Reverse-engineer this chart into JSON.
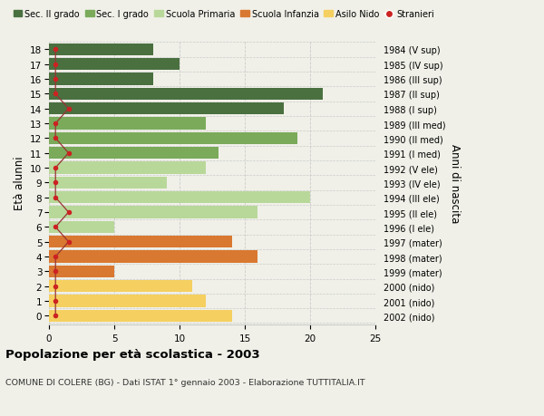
{
  "ages": [
    18,
    17,
    16,
    15,
    14,
    13,
    12,
    11,
    10,
    9,
    8,
    7,
    6,
    5,
    4,
    3,
    2,
    1,
    0
  ],
  "right_labels": [
    "1984 (V sup)",
    "1985 (IV sup)",
    "1986 (III sup)",
    "1987 (II sup)",
    "1988 (I sup)",
    "1989 (III med)",
    "1990 (II med)",
    "1991 (I med)",
    "1992 (V ele)",
    "1993 (IV ele)",
    "1994 (III ele)",
    "1995 (II ele)",
    "1996 (I ele)",
    "1997 (mater)",
    "1998 (mater)",
    "1999 (mater)",
    "2000 (nido)",
    "2001 (nido)",
    "2002 (nido)"
  ],
  "bar_values": [
    8,
    10,
    8,
    21,
    18,
    12,
    19,
    13,
    12,
    9,
    20,
    16,
    5,
    14,
    16,
    5,
    11,
    12,
    14
  ],
  "bar_colors": [
    "#4a7040",
    "#4a7040",
    "#4a7040",
    "#4a7040",
    "#4a7040",
    "#7aaa5a",
    "#7aaa5a",
    "#7aaa5a",
    "#b8d89a",
    "#b8d89a",
    "#b8d89a",
    "#b8d89a",
    "#b8d89a",
    "#d97830",
    "#d97830",
    "#d97830",
    "#f5d060",
    "#f5d060",
    "#f5d060"
  ],
  "stranieri_values": [
    0.5,
    0.5,
    0.5,
    0.5,
    1.5,
    0.5,
    0.5,
    1.5,
    0.5,
    0.5,
    0.5,
    1.5,
    0.5,
    1.5,
    0.5,
    0.5,
    0.5,
    0.5,
    0.5
  ],
  "legend_labels": [
    "Sec. II grado",
    "Sec. I grado",
    "Scuola Primaria",
    "Scuola Infanzia",
    "Asilo Nido",
    "Stranieri"
  ],
  "legend_colors": [
    "#4a7040",
    "#7aaa5a",
    "#b8d89a",
    "#d97830",
    "#f5d060",
    "#cc2222"
  ],
  "ylabel": "Età alunni",
  "ylabel_right": "Anni di nascita",
  "title": "Popolazione per età scolastica - 2003",
  "subtitle": "COMUNE DI COLERE (BG) - Dati ISTAT 1° gennaio 2003 - Elaborazione TUTTITALIA.IT",
  "xlim": [
    0,
    25
  ],
  "xticks": [
    0,
    5,
    10,
    15,
    20,
    25
  ],
  "bg_color": "#f0f0e8",
  "grid_color": "#cccccc"
}
